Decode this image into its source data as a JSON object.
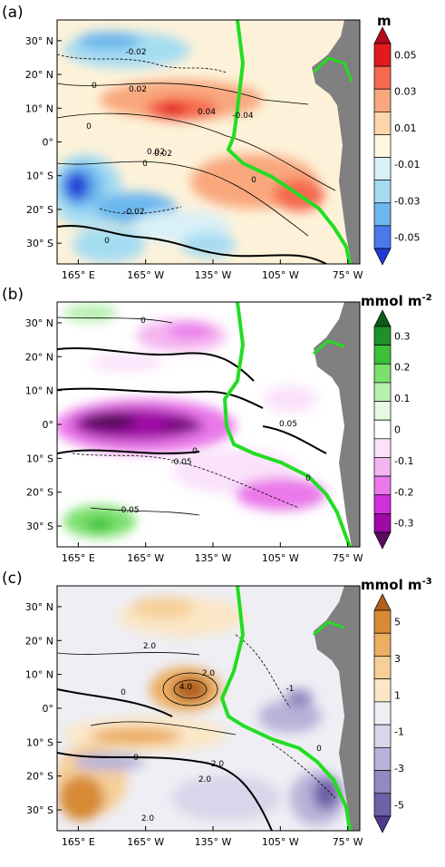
{
  "chart_data": [
    {
      "type": "heatmap",
      "panel_label": "(a)",
      "colorbar_unit": "m",
      "colorbar_unit_sup": "",
      "colorbar_ticks": [
        "0.05",
        "0.03",
        "0.01",
        "-0.01",
        "-0.03",
        "-0.05"
      ],
      "colorbar_colors": [
        "#b4081c",
        "#e31a1c",
        "#f46a50",
        "#f9a77d",
        "#fdd6aa",
        "#fff5e0",
        "#d9f0f7",
        "#a6dcf2",
        "#6bb7ee",
        "#4a79ec",
        "#1d39d3"
      ],
      "y_ticks": [
        "30° N",
        "20° N",
        "10° N",
        "0°",
        "10° S",
        "20° S",
        "30° S"
      ],
      "x_ticks": [
        "165° E",
        "165° W",
        "135° W",
        "105° W",
        "75° W"
      ],
      "contour_labels": [
        "0",
        "-0.02",
        "0.02",
        "0",
        "0.04",
        "0.02",
        "-0.04",
        "0.02",
        "0",
        "0",
        "-0.02",
        "0"
      ]
    },
    {
      "type": "heatmap",
      "panel_label": "(b)",
      "colorbar_unit": "mmol m",
      "colorbar_unit_sup": "-2",
      "colorbar_ticks": [
        "0.3",
        "0.2",
        "0.1",
        "0",
        "-0.1",
        "-0.2",
        "-0.3"
      ],
      "colorbar_colors": [
        "#0e5a1a",
        "#1f8f2a",
        "#3cbf3a",
        "#7be06e",
        "#b8f0b0",
        "#e5fae0",
        "#ffffff",
        "#fae2fa",
        "#f5b5f0",
        "#ea78ea",
        "#d030d8",
        "#9e0aa6",
        "#5a0a5e"
      ],
      "y_ticks": [
        "30° N",
        "20° N",
        "10° N",
        "0°",
        "10° S",
        "20° S",
        "30° S"
      ],
      "x_ticks": [
        "165° E",
        "165° W",
        "135° W",
        "105° W",
        "75° W"
      ],
      "contour_labels": [
        "0",
        "-0.05",
        "0",
        "0.05",
        "-0.05",
        "0"
      ]
    },
    {
      "type": "heatmap",
      "panel_label": "(c)",
      "colorbar_unit": "mmol m",
      "colorbar_unit_sup": "-3",
      "colorbar_ticks": [
        "5",
        "3",
        "1",
        "-1",
        "-3",
        "-5"
      ],
      "colorbar_colors": [
        "#b0601a",
        "#d88a35",
        "#ecae62",
        "#f6cf98",
        "#fbe6c6",
        "#eeeef4",
        "#d7d6ea",
        "#b8b3d8",
        "#9388c0",
        "#7060a8",
        "#503a8e"
      ],
      "y_ticks": [
        "30° N",
        "20° N",
        "10° N",
        "0°",
        "10° S",
        "20° S",
        "30° S"
      ],
      "x_ticks": [
        "165° E",
        "165° W",
        "135° W",
        "105° W",
        "75° W"
      ],
      "contour_labels": [
        "2.0",
        "0",
        "4.0",
        "2.0",
        "0",
        "-1",
        "2.0",
        "0",
        "2.0",
        "2.0"
      ]
    }
  ]
}
